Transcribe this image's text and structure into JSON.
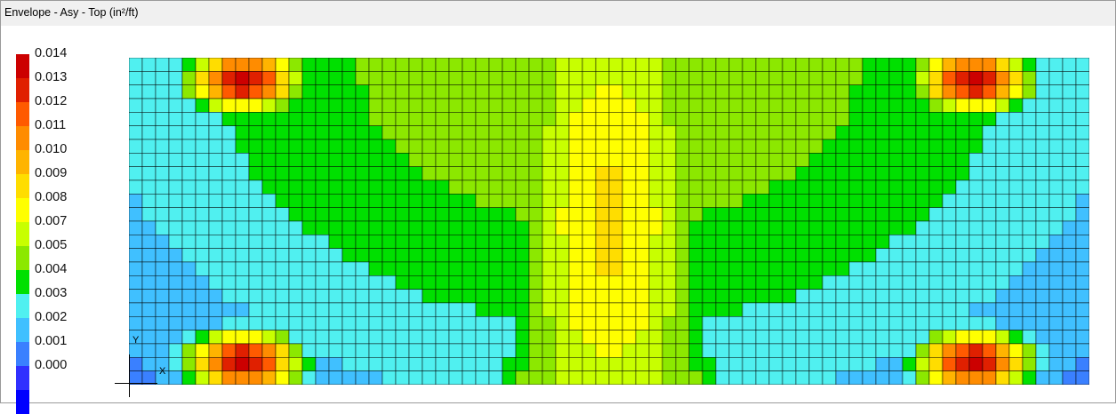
{
  "window": {
    "title": "Envelope - Asy - Top (in²/ft)"
  },
  "legend": {
    "labels": [
      "0.014",
      "0.013",
      "0.012",
      "0.011",
      "0.010",
      "0.009",
      "0.008",
      "0.007",
      "0.005",
      "0.004",
      "0.003",
      "0.002",
      "0.001",
      "0.000"
    ],
    "colors": [
      "#cc0000",
      "#e02000",
      "#ff5a00",
      "#ff8c00",
      "#ffb400",
      "#ffdd00",
      "#ffff00",
      "#c8ff00",
      "#8ce800",
      "#00e000",
      "#50f0f0",
      "#40c0ff",
      "#3a80ff",
      "#3030ff",
      "#0000ff"
    ]
  },
  "contour": {
    "background_color": "#0000ff",
    "grid_color": "#000000"
  },
  "axes": {
    "x_label": "X",
    "y_label": "Y"
  }
}
